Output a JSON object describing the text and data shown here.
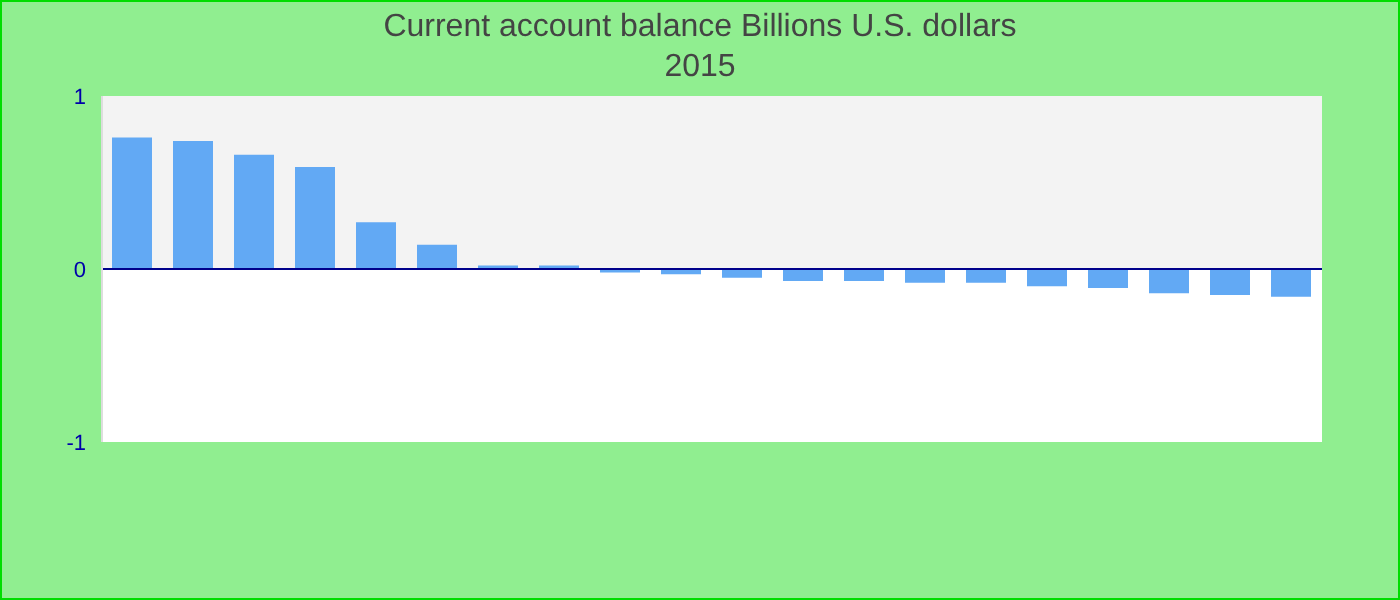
{
  "chart_data": {
    "type": "bar",
    "title": "Current account balance Billions U.S. dollars",
    "subtitle": "2015",
    "categories": [
      null,
      null,
      null,
      null,
      null,
      null,
      null,
      null,
      null,
      null,
      null,
      null,
      null,
      null,
      null,
      null,
      null,
      null,
      null,
      null
    ],
    "values": [
      0.76,
      0.74,
      0.66,
      0.59,
      0.27,
      0.14,
      0.02,
      0.02,
      -0.02,
      -0.03,
      -0.05,
      -0.07,
      -0.07,
      -0.08,
      -0.08,
      -0.1,
      -0.11,
      -0.14,
      -0.15,
      -0.16
    ],
    "color": "#62a9f4",
    "ylim": [
      -1,
      1
    ],
    "yticks": [
      -1,
      0,
      1
    ],
    "grid": false,
    "ref_lines": [
      {
        "axis": "y",
        "value": 0,
        "color": "#00008b"
      }
    ],
    "bands": [
      {
        "axis": "y",
        "from": 0,
        "to": 1,
        "color": "#f3f3f3"
      },
      {
        "axis": "y",
        "from": -1,
        "to": 0,
        "color": "#ffffff"
      }
    ]
  }
}
